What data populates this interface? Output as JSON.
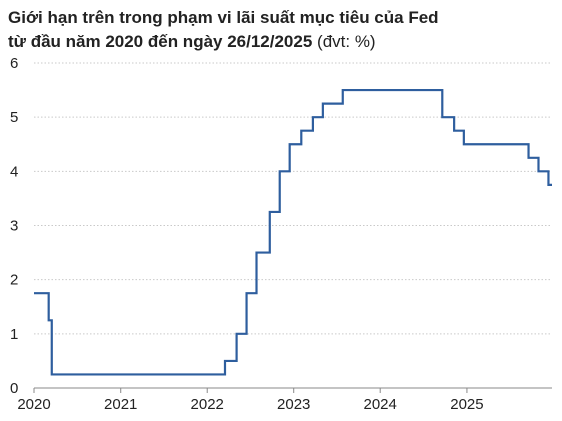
{
  "title": {
    "line1": "Giới hạn trên trong phạm vi lãi suất mục tiêu của Fed",
    "line2": "từ đầu năm 2020 đến ngày 26/12/2025",
    "unit": "(đvt: %)"
  },
  "colors": {
    "series": "#2e5e9e",
    "grid": "#c9c9c9",
    "axis": "#888888",
    "text": "#222222"
  },
  "chart_data": {
    "type": "line",
    "step": true,
    "title": "Giới hạn trên trong phạm vi lãi suất mục tiêu của Fed từ đầu năm 2020 đến ngày 26/12/2025 (đvt: %)",
    "xlabel": "",
    "ylabel": "",
    "xlim": [
      "2020-01-01",
      "2025-12-26"
    ],
    "ylim": [
      0,
      6
    ],
    "yticks": [
      "0",
      "1",
      "2",
      "3",
      "4",
      "5",
      "6"
    ],
    "xticks": [
      "2020",
      "2021",
      "2022",
      "2023",
      "2024",
      "2025"
    ],
    "grid": "horizontal",
    "series": [
      {
        "x": [
          "2020-01-01",
          "2020-03-03",
          "2020-03-16",
          "2022-03-17",
          "2022-05-05",
          "2022-06-16",
          "2022-07-28",
          "2022-09-22",
          "2022-11-03",
          "2022-12-15",
          "2023-02-02",
          "2023-03-23",
          "2023-05-04",
          "2023-07-27",
          "2024-09-19",
          "2024-11-08",
          "2024-12-19",
          "2025-09-18",
          "2025-10-30",
          "2025-12-11",
          "2025-12-26"
        ],
        "values": [
          1.75,
          1.25,
          0.25,
          0.5,
          1.0,
          1.75,
          2.5,
          3.25,
          4.0,
          4.5,
          4.75,
          5.0,
          5.25,
          5.5,
          5.0,
          4.75,
          4.5,
          4.25,
          4.0,
          3.75,
          3.75
        ]
      }
    ]
  }
}
